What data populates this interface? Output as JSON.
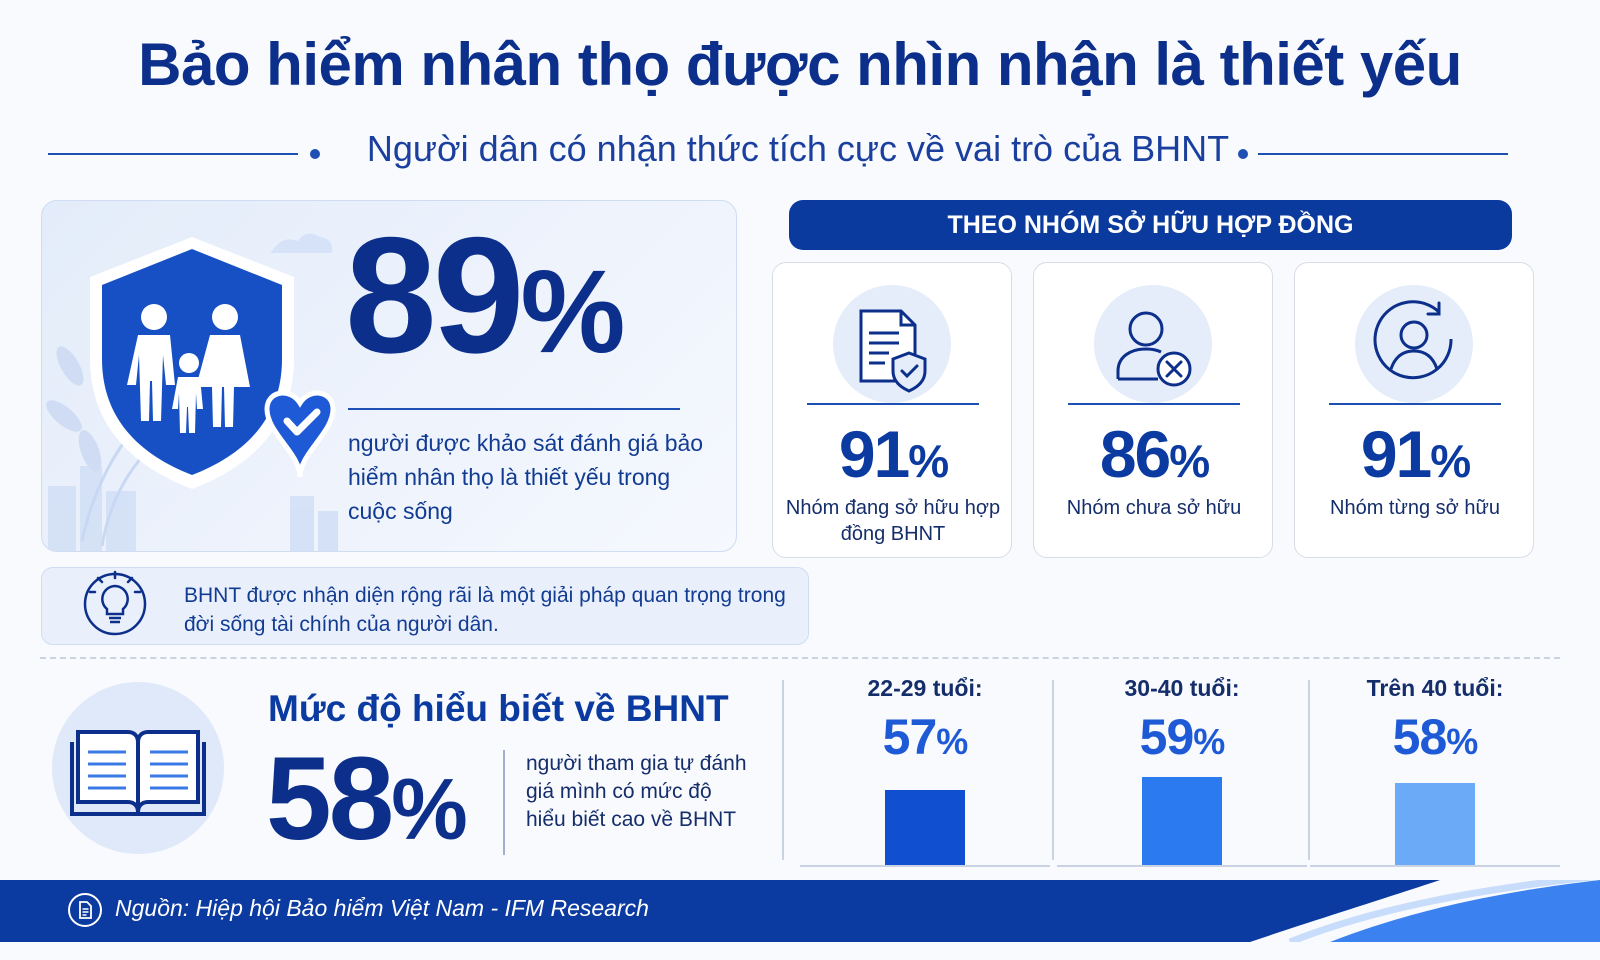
{
  "header": {
    "title": "Bảo hiểm nhân thọ được nhìn nhận là thiết yếu",
    "subtitle": "Người dân có nhận thức tích cực về vai trò của BHNT"
  },
  "headline": {
    "value": "89",
    "unit": "%",
    "description": "người được khảo sát đánh giá bảo hiểm nhân thọ là thiết yếu trong cuộc sống",
    "icon": "shield-family-icon"
  },
  "insight": {
    "text": "BHNT được nhận diện rộng rãi là một giải pháp quan trọng trong đời sống tài chính của người dân.",
    "icon": "lightbulb-icon"
  },
  "groups": {
    "header": "THEO NHÓM SỞ HỮU HỢP ĐỒNG",
    "items": [
      {
        "value": "91",
        "unit": "%",
        "label": "Nhóm đang sở hữu hợp đồng BHNT",
        "icon": "contract-shield-icon"
      },
      {
        "value": "86",
        "unit": "%",
        "label": "Nhóm chưa sở hữu",
        "icon": "user-x-icon"
      },
      {
        "value": "91",
        "unit": "%",
        "label": "Nhóm từng sở hữu",
        "icon": "user-refresh-icon"
      }
    ]
  },
  "understanding": {
    "title": "Mức độ hiểu biết về BHNT",
    "value": "58",
    "unit": "%",
    "description": "người tham gia tự đánh giá mình có mức độ hiểu biết cao về BHNT",
    "icon": "book-icon"
  },
  "chart_data": {
    "type": "bar",
    "categories": [
      "22-29 tuổi:",
      "30-40 tuổi:",
      "Trên 40 tuổi:"
    ],
    "values": [
      57,
      59,
      58
    ],
    "unit": "%",
    "colors": [
      "#0f4fd0",
      "#2c7af0",
      "#6aaaf7"
    ],
    "ylim": [
      50,
      60
    ]
  },
  "footer": {
    "source": "Nguồn: Hiệp hội Bảo hiểm Việt Nam - IFM Research",
    "icon": "document-icon"
  },
  "colors": {
    "primary": "#0b2f8a",
    "accent": "#1f5ad6",
    "light": "#e5edfa"
  }
}
